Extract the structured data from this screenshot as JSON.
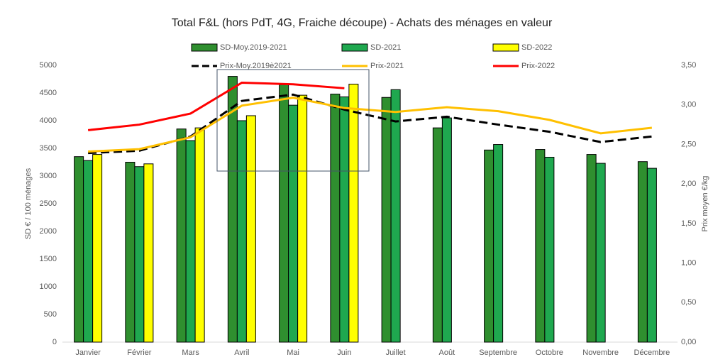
{
  "chart_data": {
    "type": "bar_line",
    "title": "Total F&L (hors PdT, 4G, Fraiche découpe) - Achats des ménages en valeur",
    "y_label": "SD € / 100 ménages",
    "y2_label": "Prix moyen €/kg",
    "categories": [
      "Janvier",
      "Février",
      "Mars",
      "Avril",
      "Mai",
      "Juin",
      "Juillet",
      "Août",
      "Septembre",
      "Octobre",
      "Novembre",
      "Décembre"
    ],
    "series": [
      {
        "name": "SD-Moy.2019-2021",
        "type": "bar",
        "color": "#2f8f2f",
        "values": [
          3350,
          3250,
          3850,
          4800,
          4650,
          4480,
          4420,
          3870,
          3470,
          3480,
          3390,
          3260
        ]
      },
      {
        "name": "SD-2021",
        "type": "bar",
        "color": "#1fa84f",
        "values": [
          3280,
          3170,
          3640,
          4000,
          4280,
          4430,
          4560,
          4050,
          3570,
          3340,
          3230,
          3140
        ]
      },
      {
        "name": "SD-2022",
        "type": "bar",
        "color": "#ffff00",
        "values": [
          3390,
          3220,
          3870,
          4090,
          4460,
          4660,
          null,
          null,
          null,
          null,
          null,
          null
        ]
      },
      {
        "name": "Prix-Moy.2019è2021",
        "type": "line",
        "axis": "y2",
        "color": "#000000",
        "dash": true,
        "values": [
          2.39,
          2.42,
          2.6,
          3.05,
          3.13,
          2.94,
          2.79,
          2.85,
          2.75,
          2.66,
          2.53,
          2.6
        ]
      },
      {
        "name": "Prix-2021",
        "type": "line",
        "axis": "y2",
        "color": "#ffc000",
        "values": [
          2.41,
          2.44,
          2.59,
          2.99,
          3.09,
          2.96,
          2.91,
          2.97,
          2.92,
          2.81,
          2.64,
          2.71
        ]
      },
      {
        "name": "Prix-2022",
        "type": "line",
        "axis": "y2",
        "color": "#ff0000",
        "values": [
          2.68,
          2.75,
          2.89,
          3.28,
          3.26,
          3.21,
          null,
          null,
          null,
          null,
          null,
          null
        ]
      }
    ],
    "ylim": [
      0,
      5000
    ],
    "yticks": [
      0,
      500,
      1000,
      1500,
      2000,
      2500,
      3000,
      3500,
      4000,
      4500,
      5000
    ],
    "y2lim": [
      0,
      3.5
    ],
    "y2ticks": [
      {
        "value": 0,
        "label": "0,00"
      },
      {
        "value": 0.5,
        "label": "0,50"
      },
      {
        "value": 1,
        "label": "1,00"
      },
      {
        "value": 1.5,
        "label": "1,50"
      },
      {
        "value": 2,
        "label": "2,00"
      },
      {
        "value": 2.5,
        "label": "2,50"
      },
      {
        "value": 3,
        "label": "3,00"
      },
      {
        "value": 3.5,
        "label": "3,50"
      }
    ]
  }
}
